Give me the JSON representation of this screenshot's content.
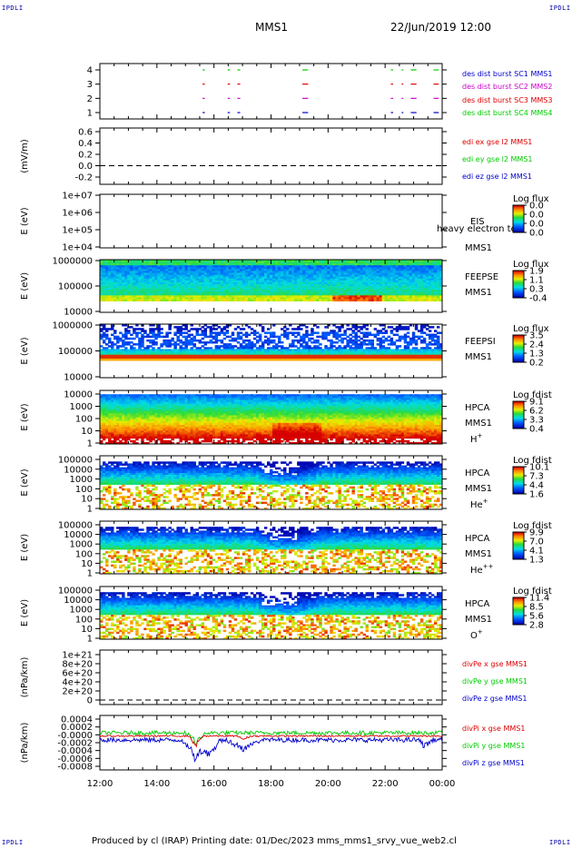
{
  "corner_label": "IPDLI",
  "header": {
    "spacecraft": "MMS1",
    "datetime": "22/Jun/2019 12:00"
  },
  "footer": {
    "text": "Produced by cl (IRAP)   Printing date: 01/Dec/2023   mms_mms1_srvy_vue_web2.cl"
  },
  "colors": {
    "red": "#dd0000",
    "green": "#00cc00",
    "blue": "#0000cc",
    "magenta": "#cc00cc"
  },
  "chart_data": [
    {
      "type": "scatter",
      "id": "des_burst",
      "x_time_ticks": [
        "12:00",
        "14:00",
        "16:00",
        "18:00",
        "20:00",
        "22:00",
        "00:00"
      ],
      "y_ticks": [
        "1",
        "2",
        "3",
        "4"
      ],
      "series": [
        {
          "name": "des dist burst SC1 MMS1",
          "color": "#0000cc",
          "y": 1
        },
        {
          "name": "des dist burst SC2 MMS2",
          "color": "#cc00cc",
          "y": 2
        },
        {
          "name": "des dist burst SC3 MMS3",
          "color": "#dd0000",
          "y": 3
        },
        {
          "name": "des dist burst SC4 MMS4",
          "color": "#00cc00",
          "y": 4
        }
      ],
      "burst_intervals_hours": [
        [
          15.6,
          15.68
        ],
        [
          16.48,
          16.56
        ],
        [
          16.82,
          16.92
        ],
        [
          19.1,
          19.3
        ],
        [
          22.2,
          22.28
        ],
        [
          22.58,
          22.64
        ],
        [
          22.9,
          23.1
        ],
        [
          23.7,
          23.88
        ]
      ]
    },
    {
      "type": "line",
      "id": "edi",
      "ylabel": "(mV/m)",
      "y_ticks": [
        "0.6",
        "0.4",
        "0.2",
        "0.0",
        "-0.2"
      ],
      "ylim": [
        -0.2,
        0.6
      ],
      "series": [
        {
          "name": "edi ex gse l2 MMS1",
          "color": "#dd0000"
        },
        {
          "name": "edi ey gse l2 MMS1",
          "color": "#00cc00"
        },
        {
          "name": "edi ez gse l2 MMS1",
          "color": "#0000cc"
        }
      ]
    },
    {
      "type": "heatmap",
      "id": "eis",
      "ylabel": "E (eV)",
      "y_scale": "log",
      "y_ticks": [
        "1e+07",
        "1e+06",
        "1e+05",
        "1e+04"
      ],
      "label_lines": [
        "EIS",
        "MMS1"
      ],
      "overlay_text": "heavy electron to",
      "colorbar": {
        "title": "Log flux",
        "ticks": [
          "0.0",
          "0.0",
          "0.0",
          "0.0"
        ]
      }
    },
    {
      "type": "heatmap",
      "id": "feepse",
      "ylabel": "E (eV)",
      "y_scale": "log",
      "y_ticks": [
        "1000000",
        "100000",
        "10000"
      ],
      "label_lines": [
        "FEEPSE",
        "MMS1"
      ],
      "colorbar": {
        "title": "Log flux",
        "ticks": [
          "1.9",
          "1.1",
          "0.3",
          "-0.4"
        ]
      }
    },
    {
      "type": "heatmap",
      "id": "feepsi",
      "ylabel": "E (eV)",
      "y_scale": "log",
      "y_ticks": [
        "1000000",
        "100000",
        "10000"
      ],
      "label_lines": [
        "FEEPSI",
        "MMS1"
      ],
      "colorbar": {
        "title": "Log flux",
        "ticks": [
          "3.5",
          "2.4",
          "1.3",
          "0.2"
        ]
      }
    },
    {
      "type": "heatmap",
      "id": "hpca_h",
      "ylabel": "E (eV)",
      "y_scale": "log",
      "y_ticks": [
        "10000",
        "1000",
        "100",
        "10",
        "1"
      ],
      "label_lines": [
        "HPCA",
        "MMS1"
      ],
      "species": "H",
      "species_sup": "+",
      "colorbar": {
        "title": "Log fdist",
        "ticks": [
          "9.1",
          "6.2",
          "3.3",
          "0.4"
        ]
      }
    },
    {
      "type": "heatmap",
      "id": "hpca_he",
      "ylabel": "E (eV)",
      "y_scale": "log",
      "y_ticks": [
        "100000",
        "10000",
        "1000",
        "100",
        "10",
        "1"
      ],
      "label_lines": [
        "HPCA",
        "MMS1"
      ],
      "species": "He",
      "species_sup": "+",
      "colorbar": {
        "title": "Log fdist",
        "ticks": [
          "10.1",
          "7.3",
          "4.4",
          "1.6"
        ]
      }
    },
    {
      "type": "heatmap",
      "id": "hpca_hepp",
      "ylabel": "E (eV)",
      "y_scale": "log",
      "y_ticks": [
        "100000",
        "10000",
        "1000",
        "100",
        "10",
        "1"
      ],
      "label_lines": [
        "HPCA",
        "MMS1"
      ],
      "species": "He",
      "species_sup": "++",
      "colorbar": {
        "title": "Log fdist",
        "ticks": [
          "9.9",
          "7.0",
          "4.1",
          "1.3"
        ]
      }
    },
    {
      "type": "heatmap",
      "id": "hpca_o",
      "ylabel": "E (eV)",
      "y_scale": "log",
      "y_ticks": [
        "100000",
        "10000",
        "1000",
        "100",
        "10",
        "1"
      ],
      "label_lines": [
        "HPCA",
        "MMS1"
      ],
      "species": "O",
      "species_sup": "+",
      "colorbar": {
        "title": "Log fdist",
        "ticks": [
          "11.4",
          "8.5",
          "5.6",
          "2.8"
        ]
      }
    },
    {
      "type": "line",
      "id": "divpe",
      "ylabel": "(nPa/km)",
      "y_ticks": [
        "1e+21",
        "8e+20",
        "6e+20",
        "4e+20",
        "2e+20",
        "0"
      ],
      "series": [
        {
          "name": "divPe x gse MMS1",
          "color": "#dd0000"
        },
        {
          "name": "divPe y gse MMS1",
          "color": "#00cc00"
        },
        {
          "name": "divPe z gse MMS1",
          "color": "#0000cc"
        }
      ]
    },
    {
      "type": "line",
      "id": "divpi",
      "ylabel": "(nPa/km)",
      "y_ticks": [
        "0.0004",
        "0.0002",
        "-0.0000",
        "-0.0002",
        "-0.0004",
        "-0.0006",
        "-0.0008"
      ],
      "ylim": [
        -0.0008,
        0.0004
      ],
      "series": [
        {
          "name": "divPi x gse MMS1",
          "color": "#dd0000"
        },
        {
          "name": "divPi y gse MMS1",
          "color": "#00cc00"
        },
        {
          "name": "divPi z gse MMS1",
          "color": "#0000cc"
        }
      ],
      "x_time_ticks": [
        "12:00",
        "14:00",
        "16:00",
        "18:00",
        "20:00",
        "22:00",
        "00:00"
      ]
    }
  ]
}
